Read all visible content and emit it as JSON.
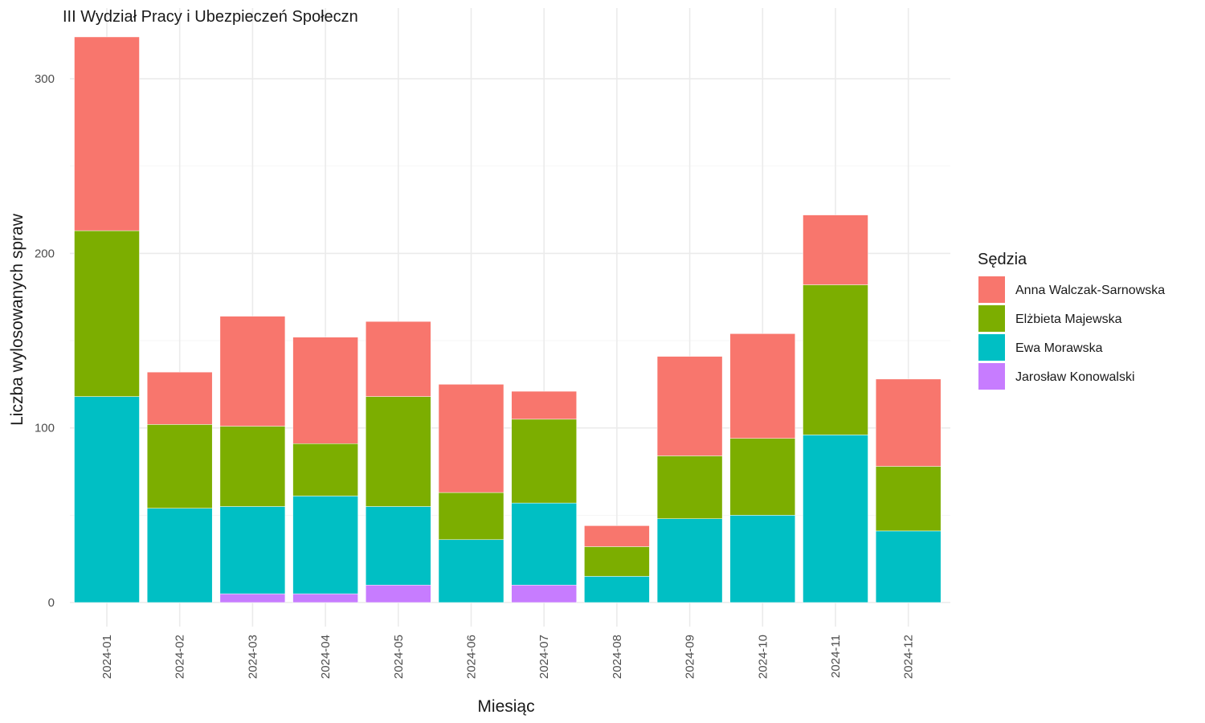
{
  "chart_data": {
    "type": "bar",
    "stacked": true,
    "title": "III Wydział Pracy i Ubezpieczeń Społeczn",
    "xlabel": "Miesiąc",
    "ylabel": "Liczba wylosowanych spraw",
    "ylim": [
      0,
      325
    ],
    "yticks": [
      0,
      100,
      200,
      300
    ],
    "grid": true,
    "legend_title": "Sędzia",
    "legend_position": "right",
    "categories": [
      "2024-01",
      "2024-02",
      "2024-03",
      "2024-04",
      "2024-05",
      "2024-06",
      "2024-07",
      "2024-08",
      "2024-09",
      "2024-10",
      "2024-11",
      "2024-12"
    ],
    "series": [
      {
        "name": "Jarosław Konowalski",
        "color": "#C77CFF",
        "values": [
          0,
          0,
          5,
          5,
          10,
          0,
          10,
          0,
          0,
          0,
          0,
          0
        ]
      },
      {
        "name": "Ewa Morawska",
        "color": "#00BFC4",
        "values": [
          118,
          54,
          50,
          56,
          45,
          36,
          47,
          15,
          48,
          50,
          96,
          41
        ]
      },
      {
        "name": "Elżbieta Majewska",
        "color": "#7CAE00",
        "values": [
          95,
          48,
          46,
          30,
          63,
          27,
          48,
          17,
          36,
          44,
          86,
          37
        ]
      },
      {
        "name": "Anna Walczak-Sarnowska",
        "color": "#F8766D",
        "values": [
          111,
          30,
          63,
          61,
          43,
          62,
          16,
          12,
          57,
          60,
          40,
          50
        ]
      }
    ],
    "legend_order": [
      "Anna Walczak-Sarnowska",
      "Elżbieta Majewska",
      "Ewa Morawska",
      "Jarosław Konowalski"
    ]
  }
}
